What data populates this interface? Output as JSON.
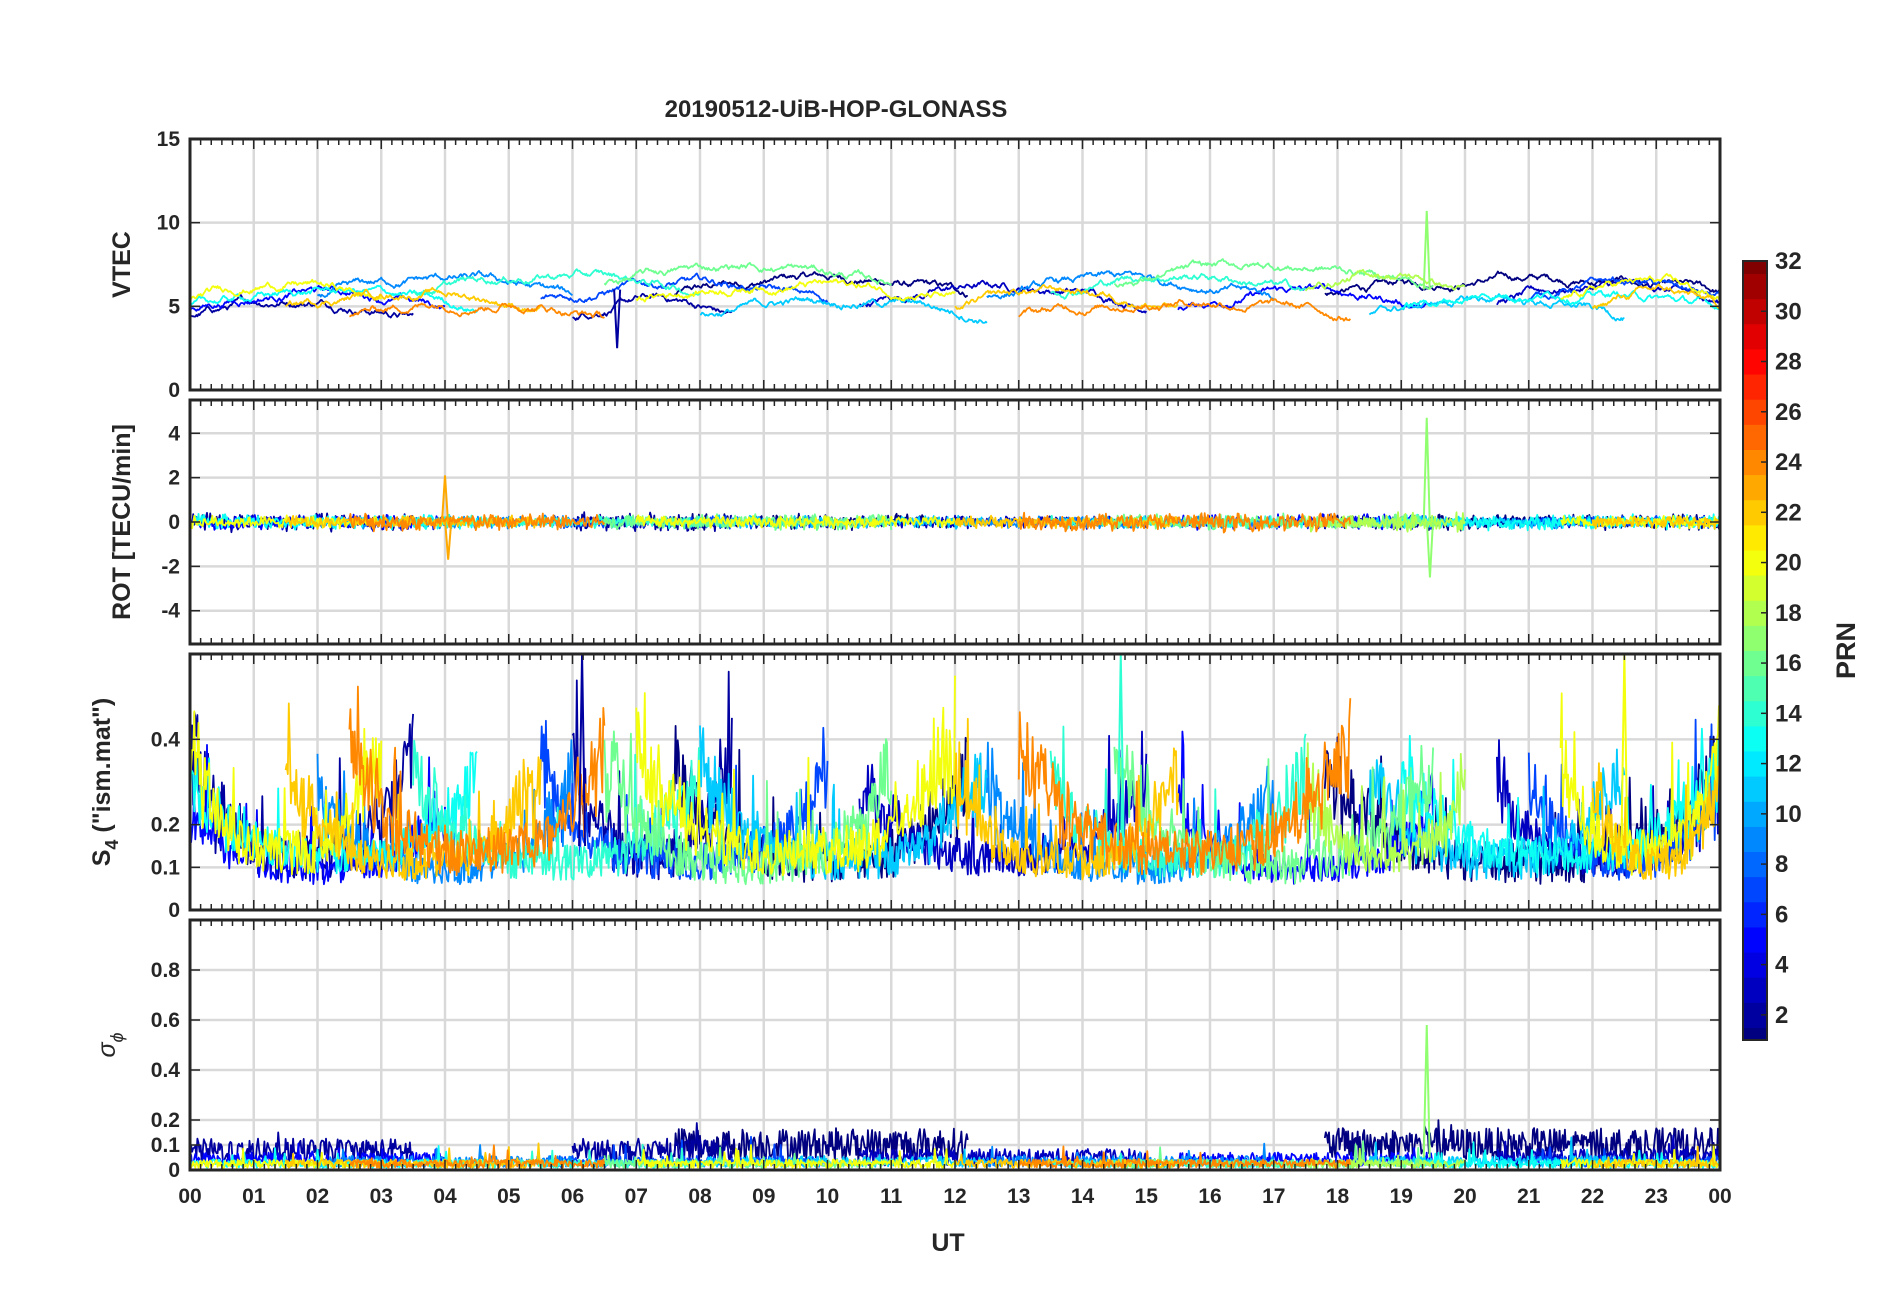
{
  "chart_data": {
    "title": "20190512-UiB-HOP-GLONASS",
    "type": "line",
    "xlabel": "UT",
    "x_ticks": [
      "00",
      "01",
      "02",
      "03",
      "04",
      "05",
      "06",
      "07",
      "08",
      "09",
      "10",
      "11",
      "12",
      "13",
      "14",
      "15",
      "16",
      "17",
      "18",
      "19",
      "20",
      "21",
      "22",
      "23",
      "00"
    ],
    "xlim": [
      0,
      24
    ],
    "panels": [
      {
        "id": "vtec",
        "ylabel": "VTEC",
        "ylim": [
          0,
          15
        ],
        "y_ticks": [
          0,
          5,
          10,
          15
        ],
        "y_tick_labels": [
          "0",
          "5",
          "10",
          "15"
        ]
      },
      {
        "id": "rot",
        "ylabel": "ROT [TECU/min]",
        "ylim": [
          -5.5,
          5.5
        ],
        "y_ticks": [
          -4,
          -2,
          0,
          2,
          4
        ],
        "y_tick_labels": [
          "-4",
          "-2",
          "0",
          "2",
          "4"
        ]
      },
      {
        "id": "s4",
        "ylabel_main": "S",
        "ylabel_sub": "4",
        "ylabel_rest": " (\"ism.mat\")",
        "ylim": [
          0,
          0.6
        ],
        "y_ticks": [
          0,
          0.1,
          0.2,
          0.4
        ],
        "y_tick_labels": [
          "0",
          "0.1",
          "0.2",
          "0.4"
        ]
      },
      {
        "id": "sigphi",
        "ylabel_main": "σ",
        "ylabel_sub": "ϕ",
        "ylim": [
          0,
          1
        ],
        "y_ticks": [
          0,
          0.1,
          0.2,
          0.4,
          0.6,
          0.8
        ],
        "y_tick_labels": [
          "0",
          "0.1",
          "0.2",
          "0.4",
          "0.6",
          "0.8"
        ]
      }
    ],
    "colorbar": {
      "label": "PRN",
      "range": [
        1,
        32
      ],
      "ticks": [
        2,
        4,
        6,
        8,
        10,
        12,
        14,
        16,
        18,
        20,
        22,
        24,
        26,
        28,
        30,
        32
      ],
      "tick_labels": [
        "2",
        "4",
        "6",
        "8",
        "10",
        "12",
        "14",
        "16",
        "18",
        "20",
        "22",
        "24",
        "26",
        "28",
        "30",
        "32"
      ],
      "colormap": "jet"
    },
    "series": [
      {
        "prn": 1,
        "passes": [
          [
            7.6,
            12.2
          ],
          [
            17.8,
            24.0
          ]
        ],
        "vtec_base": 6.3,
        "rot_amp": 0.25,
        "s4_base": 0.06,
        "s4_amp": 0.22,
        "sig_base": 0.12
      },
      {
        "prn": 2,
        "passes": [
          [
            0.0,
            3.5
          ],
          [
            6.0,
            8.5
          ]
        ],
        "vtec_base": 5.0,
        "rot_amp": 0.3,
        "s4_base": 0.07,
        "s4_amp": 0.25,
        "sig_base": 0.09
      },
      {
        "prn": 3,
        "passes": [
          [
            10.5,
            15.0
          ],
          [
            20.5,
            24.0
          ]
        ],
        "vtec_base": 5.8,
        "rot_amp": 0.2,
        "s4_base": 0.08,
        "s4_amp": 0.18,
        "sig_base": 0.06
      },
      {
        "prn": 5,
        "passes": [
          [
            0.0,
            4.0
          ],
          [
            15.5,
            19.5
          ]
        ],
        "vtec_base": 5.5,
        "rot_amp": 0.25,
        "s4_base": 0.06,
        "s4_amp": 0.15,
        "sig_base": 0.05
      },
      {
        "prn": 7,
        "passes": [
          [
            5.5,
            10.0
          ],
          [
            21.0,
            24.0
          ]
        ],
        "vtec_base": 6.0,
        "rot_amp": 0.2,
        "s4_base": 0.07,
        "s4_amp": 0.2,
        "sig_base": 0.04
      },
      {
        "prn": 9,
        "passes": [
          [
            2.0,
            6.0
          ],
          [
            12.5,
            17.0
          ]
        ],
        "vtec_base": 6.2,
        "rot_amp": 0.2,
        "s4_base": 0.06,
        "s4_amp": 0.18,
        "sig_base": 0.04
      },
      {
        "prn": 11,
        "passes": [
          [
            8.0,
            12.5
          ],
          [
            18.5,
            22.5
          ]
        ],
        "vtec_base": 5.0,
        "rot_amp": 0.2,
        "s4_base": 0.07,
        "s4_amp": 0.22,
        "sig_base": 0.04
      },
      {
        "prn": 13,
        "passes": [
          [
            0.0,
            4.5
          ],
          [
            19.0,
            24.0
          ]
        ],
        "vtec_base": 5.5,
        "rot_amp": 0.25,
        "s4_base": 0.08,
        "s4_amp": 0.2,
        "sig_base": 0.03
      },
      {
        "prn": 14,
        "passes": [
          [
            3.5,
            8.0
          ],
          [
            13.5,
            17.5
          ]
        ],
        "vtec_base": 6.5,
        "rot_amp": 0.2,
        "s4_base": 0.07,
        "s4_amp": 0.2,
        "sig_base": 0.03
      },
      {
        "prn": 16,
        "passes": [
          [
            6.5,
            11.0
          ],
          [
            14.5,
            19.5
          ]
        ],
        "vtec_base": 7.0,
        "rot_amp": 0.25,
        "s4_base": 0.06,
        "s4_amp": 0.22,
        "sig_base": 0.03
      },
      {
        "prn": 18,
        "passes": [
          [
            17.5,
            20.0
          ]
        ],
        "vtec_base": 6.5,
        "rot_amp": 0.3,
        "s4_base": 0.08,
        "s4_amp": 0.2,
        "sig_base": 0.03
      },
      {
        "prn": 20,
        "passes": [
          [
            0.0,
            3.0
          ],
          [
            7.0,
            12.0
          ],
          [
            21.5,
            24.0
          ]
        ],
        "vtec_base": 6.0,
        "rot_amp": 0.2,
        "s4_base": 0.08,
        "s4_amp": 0.25,
        "sig_base": 0.03
      },
      {
        "prn": 22,
        "passes": [
          [
            1.5,
            5.5
          ],
          [
            12.0,
            15.5
          ],
          [
            22.0,
            24.0
          ]
        ],
        "vtec_base": 5.5,
        "rot_amp": 0.2,
        "s4_base": 0.07,
        "s4_amp": 0.2,
        "sig_base": 0.03
      },
      {
        "prn": 24,
        "passes": [
          [
            2.5,
            6.5
          ],
          [
            13.0,
            18.2
          ]
        ],
        "vtec_base": 5.0,
        "rot_amp": 0.3,
        "s4_base": 0.08,
        "s4_amp": 0.25,
        "sig_base": 0.03
      }
    ],
    "features": [
      {
        "panel": "vtec",
        "prn": 2,
        "x": 6.7,
        "y": 2.5
      },
      {
        "panel": "vtec",
        "prn": 17,
        "x": 19.4,
        "y": 10.7
      },
      {
        "panel": "rot",
        "prn": 17,
        "x": 19.4,
        "y": 4.7
      },
      {
        "panel": "rot",
        "prn": 17,
        "x": 19.45,
        "y": -2.5
      },
      {
        "panel": "rot",
        "prn": 23,
        "x": 4.0,
        "y": 2.1
      },
      {
        "panel": "rot",
        "prn": 23,
        "x": 4.05,
        "y": -1.7
      },
      {
        "panel": "s4",
        "prn": 2,
        "x": 6.15,
        "y": 0.6
      },
      {
        "panel": "s4",
        "prn": 14,
        "x": 14.6,
        "y": 0.6
      },
      {
        "panel": "s4",
        "prn": 20,
        "x": 22.5,
        "y": 0.6
      },
      {
        "panel": "sigphi",
        "prn": 17,
        "x": 19.4,
        "y": 0.58
      }
    ]
  }
}
